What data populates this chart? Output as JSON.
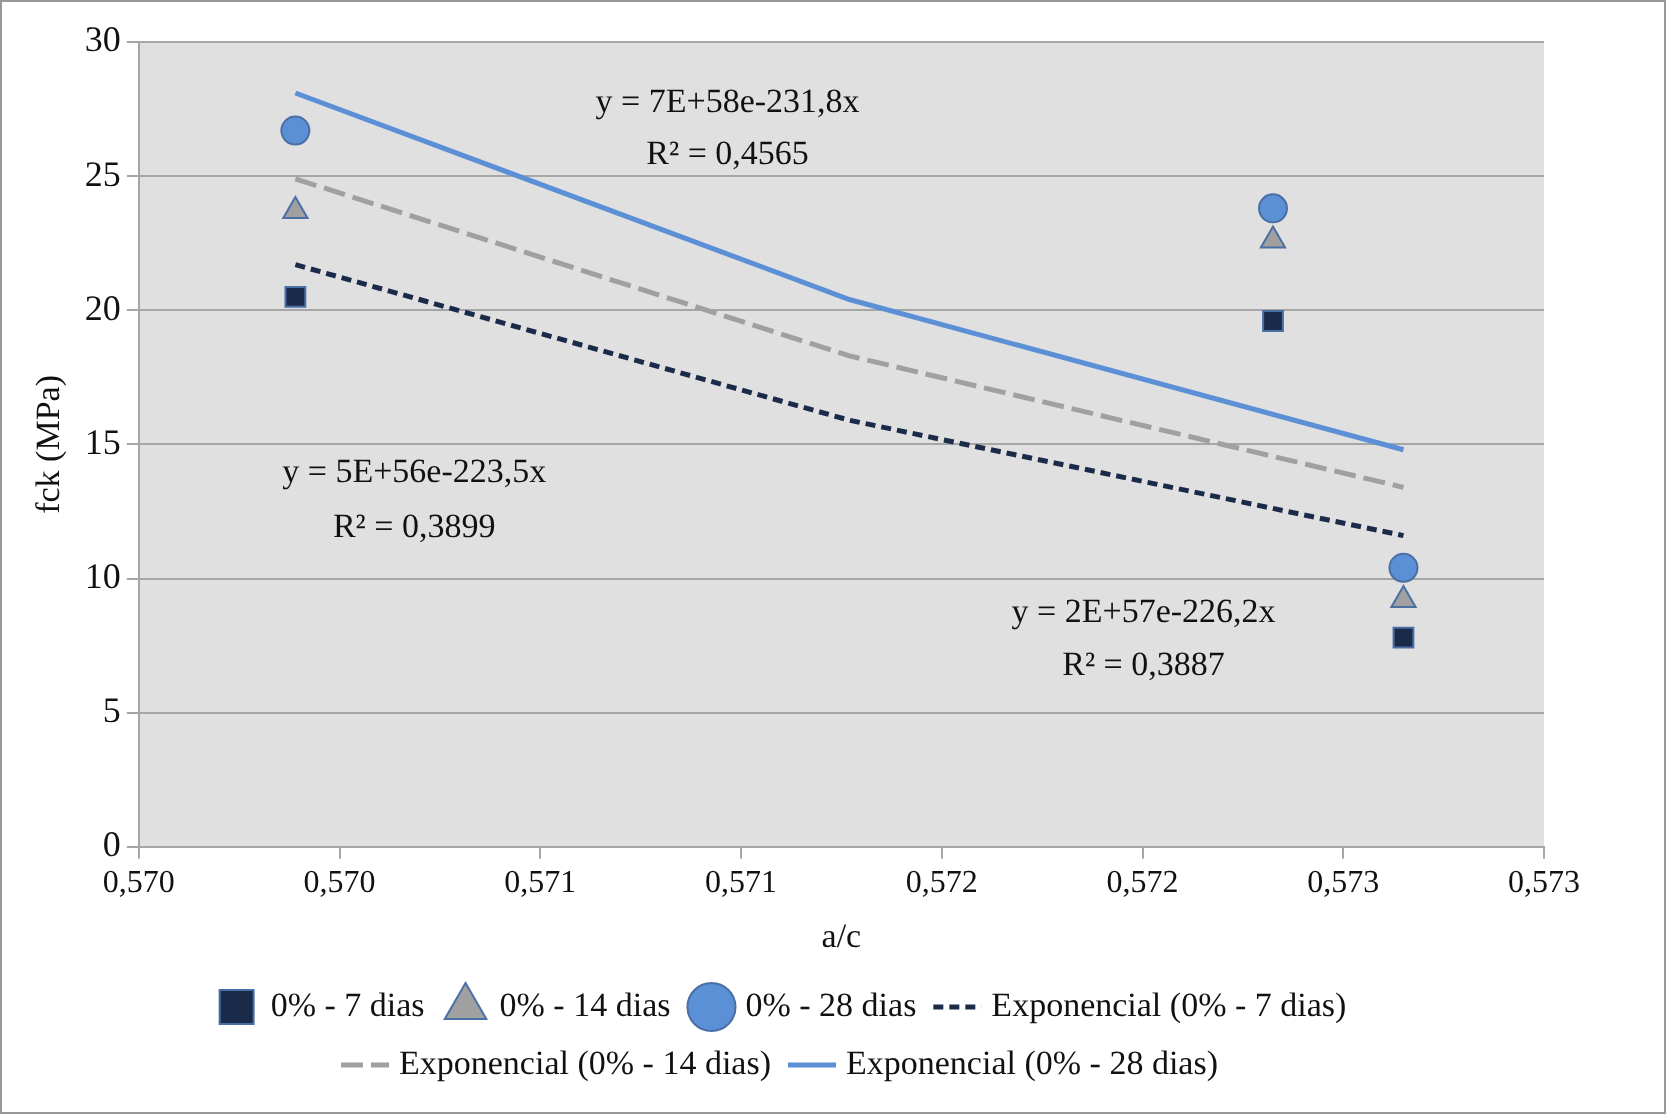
{
  "chart_data": {
    "type": "scatter",
    "xlabel": "a/c",
    "ylabel": "fck (MPa)",
    "xlim": [
      0.57,
      0.5735
    ],
    "xticks": [
      {
        "value": 0.57,
        "label": "0,570"
      },
      {
        "value": 0.5705,
        "label": "0,570"
      },
      {
        "value": 0.571,
        "label": "0,571"
      },
      {
        "value": 0.5715,
        "label": "0,571"
      },
      {
        "value": 0.572,
        "label": "0,572"
      },
      {
        "value": 0.5725,
        "label": "0,572"
      },
      {
        "value": 0.573,
        "label": "0,573"
      },
      {
        "value": 0.5735,
        "label": "0,573"
      }
    ],
    "ylim": [
      0,
      30
    ],
    "yticks": [
      0,
      5,
      10,
      15,
      20,
      25,
      30
    ],
    "grid": "y",
    "legend": "bottom",
    "series": [
      {
        "name": "0% - 7 dias",
        "type": "scatter",
        "marker": "square",
        "color": "#1a2b4a",
        "x": [
          0.57039,
          0.572825,
          0.57315
        ],
        "values": [
          20.5,
          19.6,
          7.8
        ]
      },
      {
        "name": "0% - 14 dias",
        "type": "scatter",
        "marker": "triangle",
        "color": "#a0a0a0",
        "x": [
          0.57039,
          0.572825,
          0.57315
        ],
        "values": [
          23.7,
          22.6,
          9.2
        ]
      },
      {
        "name": "0% - 28 dias",
        "type": "scatter",
        "marker": "circle",
        "color": "#5b8fd6",
        "x": [
          0.57039,
          0.572825,
          0.57315
        ],
        "values": [
          26.7,
          23.8,
          10.4
        ]
      },
      {
        "name": "Exponencial (0% - 7 dias)",
        "type": "line",
        "marker": "none",
        "line_style": "dashed",
        "color": "#1a2b4a",
        "x": [
          0.57039,
          0.57177,
          0.57315
        ],
        "values": [
          21.7,
          15.9,
          11.6
        ]
      },
      {
        "name": "Exponencial (0% - 14 dias)",
        "type": "line",
        "marker": "none",
        "line_style": "dashed",
        "color": "#a0a0a0",
        "x": [
          0.57039,
          0.57177,
          0.57315
        ],
        "values": [
          24.9,
          18.3,
          13.4
        ]
      },
      {
        "name": "Exponencial (0% - 28 dias)",
        "type": "line",
        "marker": "none",
        "line_style": "solid",
        "color": "#5b8fd6",
        "x": [
          0.57039,
          0.57177,
          0.57315
        ],
        "values": [
          28.1,
          20.4,
          14.8
        ]
      }
    ],
    "annotations": [
      "y = 7E+58e-231,8x",
      "R² = 0,4565",
      "y = 5E+56e-223,5x",
      "R² = 0,3899",
      "y = 2E+57e-226,2x",
      "R² = 0,3887"
    ]
  }
}
